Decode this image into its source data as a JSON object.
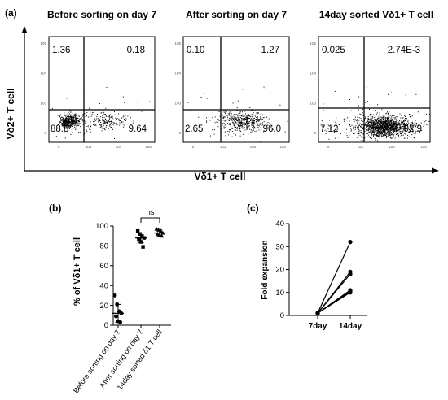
{
  "panel_labels": {
    "a": "(a)",
    "b": "(b)",
    "c": "(c)"
  },
  "panel_a": {
    "shared_x_label": "Vδ1+ T cell",
    "shared_y_label": "Vδ2+ T cell",
    "plots": [
      {
        "title": "Before sorting on day 7",
        "quadrants": {
          "ul": "1.36",
          "ur": "0.18",
          "ll": "88.8",
          "lr": "9.64"
        }
      },
      {
        "title": "After sorting on day 7",
        "quadrants": {
          "ul": "0.10",
          "ur": "1.27",
          "ll": "2.65",
          "lr": "96.0"
        }
      },
      {
        "title": "14day sorted Vδ1+ T cell",
        "quadrants": {
          "ul": "0.025",
          "ur": "2.74E-3",
          "ll": "7.12",
          "lr": "92.9"
        }
      }
    ]
  },
  "chart_data": [
    {
      "type": "scatter",
      "panel": "(b)",
      "categories": [
        "Before sorting on day 7",
        "After sorting on day 7",
        "14day sorted δ1 T cell"
      ],
      "ylabel": "% of Vδ1+ T cell",
      "xlabel": "",
      "ylim": [
        0,
        100
      ],
      "yticks": [
        0,
        20,
        40,
        60,
        80,
        100
      ],
      "points": [
        [
          30,
          21,
          14,
          12,
          9,
          4,
          3
        ],
        [
          95,
          92,
          90,
          88,
          86,
          84,
          79
        ],
        [
          97,
          96,
          95,
          93,
          92,
          91,
          90
        ]
      ],
      "mean": [
        12,
        88,
        93
      ],
      "sd": [
        9,
        5,
        3
      ],
      "significance": {
        "between": [
          1,
          2
        ],
        "label": "ns"
      }
    },
    {
      "type": "line",
      "panel": "(c)",
      "x": [
        "7day",
        "14day"
      ],
      "ylabel": "Fold expansion",
      "xlabel": "",
      "ylim": [
        0,
        40
      ],
      "yticks": [
        0,
        10,
        20,
        30,
        40
      ],
      "series": [
        {
          "values": [
            1,
            32
          ]
        },
        {
          "values": [
            1,
            19
          ]
        },
        {
          "values": [
            1,
            18
          ]
        },
        {
          "values": [
            1,
            11
          ]
        },
        {
          "values": [
            1,
            10.5
          ]
        },
        {
          "values": [
            1,
            10
          ]
        }
      ]
    }
  ]
}
